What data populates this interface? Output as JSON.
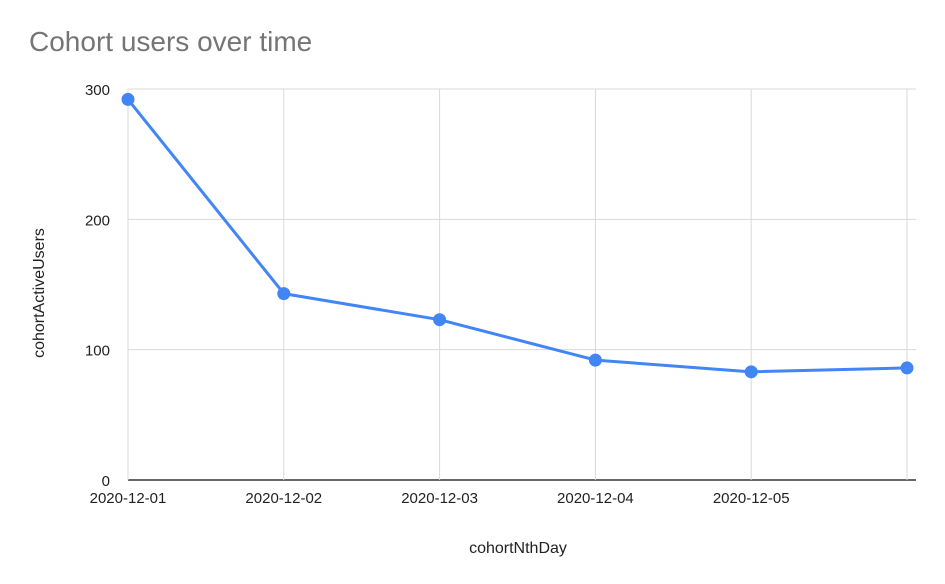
{
  "chart_data": {
    "type": "line",
    "title": "Cohort users over time",
    "xlabel": "cohortNthDay",
    "ylabel": "cohortActiveUsers",
    "categories": [
      "2020-12-01",
      "2020-12-02",
      "2020-12-03",
      "2020-12-04",
      "2020-12-05",
      ""
    ],
    "series": [
      {
        "values": [
          292,
          143,
          123,
          92,
          83,
          86
        ]
      }
    ],
    "ylim": [
      0,
      300
    ],
    "yticks": [
      0,
      100,
      200,
      300
    ],
    "grid": true,
    "legend": "none",
    "colors": {
      "line": "#4285f4",
      "grid": "#d9d9d9",
      "axis": "#333333"
    }
  }
}
